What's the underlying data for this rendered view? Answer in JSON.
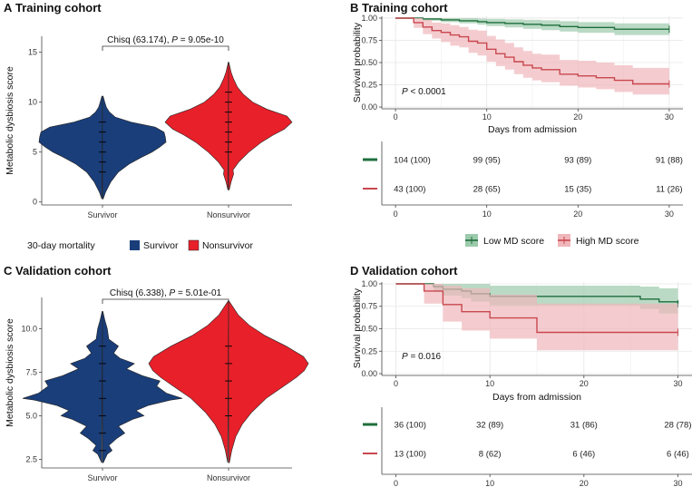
{
  "colors": {
    "survivor": "#1a3e7a",
    "nonsurvivor": "#e8202a",
    "low_md": "#1f6e3c",
    "low_md_band": "#9ccbac",
    "high_md": "#c9474f",
    "high_md_band": "#f0b7ba",
    "grid": "#e6e6e6"
  },
  "chart_data": [
    {
      "id": "A",
      "type": "violin",
      "panel_letter": "A",
      "title": "Training cohort",
      "ylabel": "Metabolic dysbiosis score",
      "ylim": [
        -0.3,
        16.6
      ],
      "yticks": [
        0,
        5,
        10,
        15
      ],
      "ytick_labels": [
        "0",
        "5",
        "10",
        "15"
      ],
      "categories": [
        "Survivor",
        "Nonsurvivor"
      ],
      "test_prefix": "Chisq (63.174), ",
      "p_label": "P",
      "p_value": " = 9.05e-10",
      "violins": [
        {
          "name": "Survivor",
          "min": 0.3,
          "max": 10.6,
          "profile": [
            [
              0.3,
              0.01
            ],
            [
              1,
              0.05
            ],
            [
              2,
              0.13
            ],
            [
              3,
              0.25
            ],
            [
              3.8,
              0.42
            ],
            [
              4.5,
              0.62
            ],
            [
              5,
              0.78
            ],
            [
              5.5,
              0.9
            ],
            [
              6,
              1.0
            ],
            [
              6.5,
              0.99
            ],
            [
              7,
              0.97
            ],
            [
              7.5,
              0.83
            ],
            [
              8,
              0.45
            ],
            [
              8.5,
              0.2
            ],
            [
              9,
              0.11
            ],
            [
              9.5,
              0.06
            ],
            [
              10,
              0.035
            ],
            [
              10.6,
              0.01
            ]
          ],
          "dots": [
            3,
            4,
            5,
            6,
            7,
            8
          ]
        },
        {
          "name": "Nonsurvivor",
          "min": 1.2,
          "max": 14,
          "profile": [
            [
              1.2,
              0.01
            ],
            [
              2,
              0.04
            ],
            [
              2.8,
              0.08
            ],
            [
              3.2,
              0.07
            ],
            [
              4,
              0.16
            ],
            [
              5,
              0.32
            ],
            [
              6,
              0.52
            ],
            [
              6.7,
              0.7
            ],
            [
              7.3,
              0.88
            ],
            [
              8,
              1.0
            ],
            [
              8.6,
              0.92
            ],
            [
              9.3,
              0.6
            ],
            [
              10,
              0.38
            ],
            [
              10.8,
              0.23
            ],
            [
              11.5,
              0.14
            ],
            [
              12.3,
              0.08
            ],
            [
              13,
              0.04
            ],
            [
              14,
              0.005
            ]
          ],
          "dots": [
            5,
            6,
            7,
            8,
            9,
            10,
            11
          ]
        }
      ],
      "legend_title": "30-day mortality",
      "legend_entries": [
        "Survivor",
        "Nonsurvivor"
      ]
    },
    {
      "id": "B",
      "type": "line",
      "panel_letter": "B",
      "title": "Training cohort",
      "ylabel": "Survival probability",
      "xlabel": "Days from admission",
      "xlim": [
        -1.5,
        31.5
      ],
      "ylim": [
        -0.02,
        1.02
      ],
      "xticks": [
        0,
        10,
        20,
        30
      ],
      "xtick_labels": [
        "0",
        "10",
        "20",
        "30"
      ],
      "yticks": [
        0,
        0.25,
        0.5,
        0.75,
        1
      ],
      "ytick_labels": [
        "0.00",
        "0.25",
        "0.50",
        "0.75",
        "1.00"
      ],
      "p_label": "P",
      "p_value": " < 0.0001",
      "series": [
        {
          "name": "Low MD score",
          "x": [
            0,
            3,
            5,
            7,
            9,
            10,
            12,
            14,
            16,
            18,
            20,
            24,
            30
          ],
          "y": [
            1.0,
            0.99,
            0.98,
            0.97,
            0.96,
            0.95,
            0.94,
            0.93,
            0.92,
            0.905,
            0.895,
            0.875,
            0.875
          ],
          "lo": [
            1.0,
            0.97,
            0.955,
            0.94,
            0.925,
            0.91,
            0.895,
            0.88,
            0.865,
            0.85,
            0.835,
            0.81,
            0.81
          ],
          "hi": [
            1.0,
            1.0,
            1.0,
            1.0,
            0.995,
            0.99,
            0.985,
            0.98,
            0.975,
            0.965,
            0.955,
            0.94,
            0.94
          ]
        },
        {
          "name": "High MD score",
          "x": [
            0,
            2,
            3,
            4,
            5,
            6,
            7,
            8,
            9,
            10,
            11,
            12,
            13,
            14,
            15,
            16,
            18,
            20,
            22,
            24,
            26,
            30
          ],
          "y": [
            1.0,
            0.95,
            0.9,
            0.86,
            0.84,
            0.81,
            0.79,
            0.74,
            0.72,
            0.65,
            0.6,
            0.56,
            0.51,
            0.47,
            0.44,
            0.42,
            0.37,
            0.35,
            0.33,
            0.3,
            0.26,
            0.26
          ],
          "lo": [
            1.0,
            0.89,
            0.82,
            0.77,
            0.73,
            0.69,
            0.67,
            0.61,
            0.58,
            0.51,
            0.46,
            0.42,
            0.37,
            0.33,
            0.3,
            0.28,
            0.24,
            0.22,
            0.2,
            0.17,
            0.14,
            0.14
          ],
          "hi": [
            1.0,
            1.0,
            0.98,
            0.95,
            0.94,
            0.92,
            0.9,
            0.87,
            0.86,
            0.8,
            0.76,
            0.72,
            0.67,
            0.63,
            0.6,
            0.59,
            0.53,
            0.52,
            0.5,
            0.47,
            0.44,
            0.44
          ]
        }
      ],
      "risk_table": {
        "times": [
          0,
          10,
          20,
          30
        ],
        "rows": [
          {
            "name": "Low MD score",
            "values": [
              "104 (100)",
              "99 (95)",
              "93 (89)",
              "91 (88)"
            ]
          },
          {
            "name": "High MD score",
            "values": [
              "43 (100)",
              "28 (65)",
              "15 (35)",
              "11 (26)"
            ]
          }
        ]
      },
      "legend_entries": [
        "Low MD score",
        "High MD score"
      ]
    },
    {
      "id": "C",
      "type": "violin",
      "panel_letter": "C",
      "title": "Validation cohort",
      "ylabel": "Metabolic dysbiosis score",
      "ylim": [
        2.0,
        11.8
      ],
      "yticks": [
        2.5,
        5.0,
        7.5,
        10.0
      ],
      "ytick_labels": [
        "2.5",
        "5.0",
        "7.5",
        "10.0"
      ],
      "categories": [
        "Survivor",
        "Nonsurvivor"
      ],
      "test_prefix": "Chisq (6.338), ",
      "p_label": "P",
      "p_value": " = 5.01e-01",
      "violins": [
        {
          "name": "Survivor",
          "min": 2.3,
          "max": 11.0,
          "profile": [
            [
              2.3,
              0.01
            ],
            [
              2.8,
              0.06
            ],
            [
              3,
              0.12
            ],
            [
              3.3,
              0.08
            ],
            [
              3.7,
              0.18
            ],
            [
              4,
              0.28
            ],
            [
              4.4,
              0.2
            ],
            [
              4.8,
              0.38
            ],
            [
              5,
              0.52
            ],
            [
              5.3,
              0.42
            ],
            [
              5.6,
              0.58
            ],
            [
              5.9,
              0.85
            ],
            [
              6,
              1.0
            ],
            [
              6.3,
              0.8
            ],
            [
              6.7,
              0.68
            ],
            [
              7,
              0.72
            ],
            [
              7.3,
              0.5
            ],
            [
              7.7,
              0.3
            ],
            [
              8,
              0.4
            ],
            [
              8.3,
              0.22
            ],
            [
              8.6,
              0.14
            ],
            [
              9,
              0.2
            ],
            [
              9.4,
              0.08
            ],
            [
              10,
              0.06
            ],
            [
              10.5,
              0.03
            ],
            [
              11,
              0.005
            ]
          ],
          "dots": [
            3,
            4,
            5,
            6,
            7,
            8,
            9
          ]
        },
        {
          "name": "Nonsurvivor",
          "min": 2.3,
          "max": 11.6,
          "profile": [
            [
              2.3,
              0.01
            ],
            [
              3,
              0.04
            ],
            [
              3.8,
              0.09
            ],
            [
              4.5,
              0.17
            ],
            [
              5.2,
              0.29
            ],
            [
              6,
              0.47
            ],
            [
              6.6,
              0.66
            ],
            [
              7.2,
              0.85
            ],
            [
              7.6,
              0.95
            ],
            [
              8,
              1.0
            ],
            [
              8.4,
              0.94
            ],
            [
              9,
              0.72
            ],
            [
              9.6,
              0.46
            ],
            [
              10.2,
              0.26
            ],
            [
              10.8,
              0.12
            ],
            [
              11.6,
              0.005
            ]
          ],
          "dots": [
            5,
            6,
            7,
            8,
            9
          ]
        }
      ]
    },
    {
      "id": "D",
      "type": "line",
      "panel_letter": "D",
      "title": "Validation cohort",
      "ylabel": "Survival probability",
      "xlabel": "Days from admission",
      "xlim": [
        -1.5,
        31.5
      ],
      "ylim": [
        -0.02,
        1.02
      ],
      "xticks": [
        0,
        10,
        20,
        30
      ],
      "xtick_labels": [
        "0",
        "10",
        "20",
        "30"
      ],
      "yticks": [
        0,
        0.25,
        0.5,
        0.75,
        1
      ],
      "ytick_labels": [
        "0.00",
        "0.25",
        "0.50",
        "0.75",
        "1.00"
      ],
      "p_label": "P",
      "p_value": " = 0.016",
      "series": [
        {
          "name": "Low MD score",
          "x": [
            0,
            4,
            5,
            7,
            8,
            10,
            20,
            26,
            28,
            30
          ],
          "y": [
            1.0,
            0.97,
            0.94,
            0.92,
            0.89,
            0.86,
            0.86,
            0.83,
            0.8,
            0.78
          ],
          "lo": [
            1.0,
            0.91,
            0.87,
            0.84,
            0.8,
            0.76,
            0.76,
            0.72,
            0.67,
            0.64
          ],
          "hi": [
            1.0,
            1.0,
            1.0,
            1.0,
            1.0,
            0.98,
            0.98,
            0.97,
            0.95,
            0.94
          ]
        },
        {
          "name": "High MD score",
          "x": [
            0,
            3,
            5,
            7,
            10,
            15,
            30
          ],
          "y": [
            1.0,
            0.92,
            0.77,
            0.69,
            0.62,
            0.46,
            0.46
          ],
          "lo": [
            1.0,
            0.78,
            0.58,
            0.48,
            0.39,
            0.26,
            0.26
          ],
          "hi": [
            1.0,
            1.0,
            0.98,
            0.95,
            0.88,
            0.78,
            0.78
          ]
        }
      ],
      "risk_table": {
        "times": [
          0,
          10,
          20,
          30
        ],
        "rows": [
          {
            "name": "Low MD score",
            "values": [
              "36 (100)",
              "32 (89)",
              "31 (86)",
              "28 (78)"
            ]
          },
          {
            "name": "High MD score",
            "values": [
              "13 (100)",
              "8 (62)",
              "6 (46)",
              "6 (46)"
            ]
          }
        ]
      }
    }
  ]
}
